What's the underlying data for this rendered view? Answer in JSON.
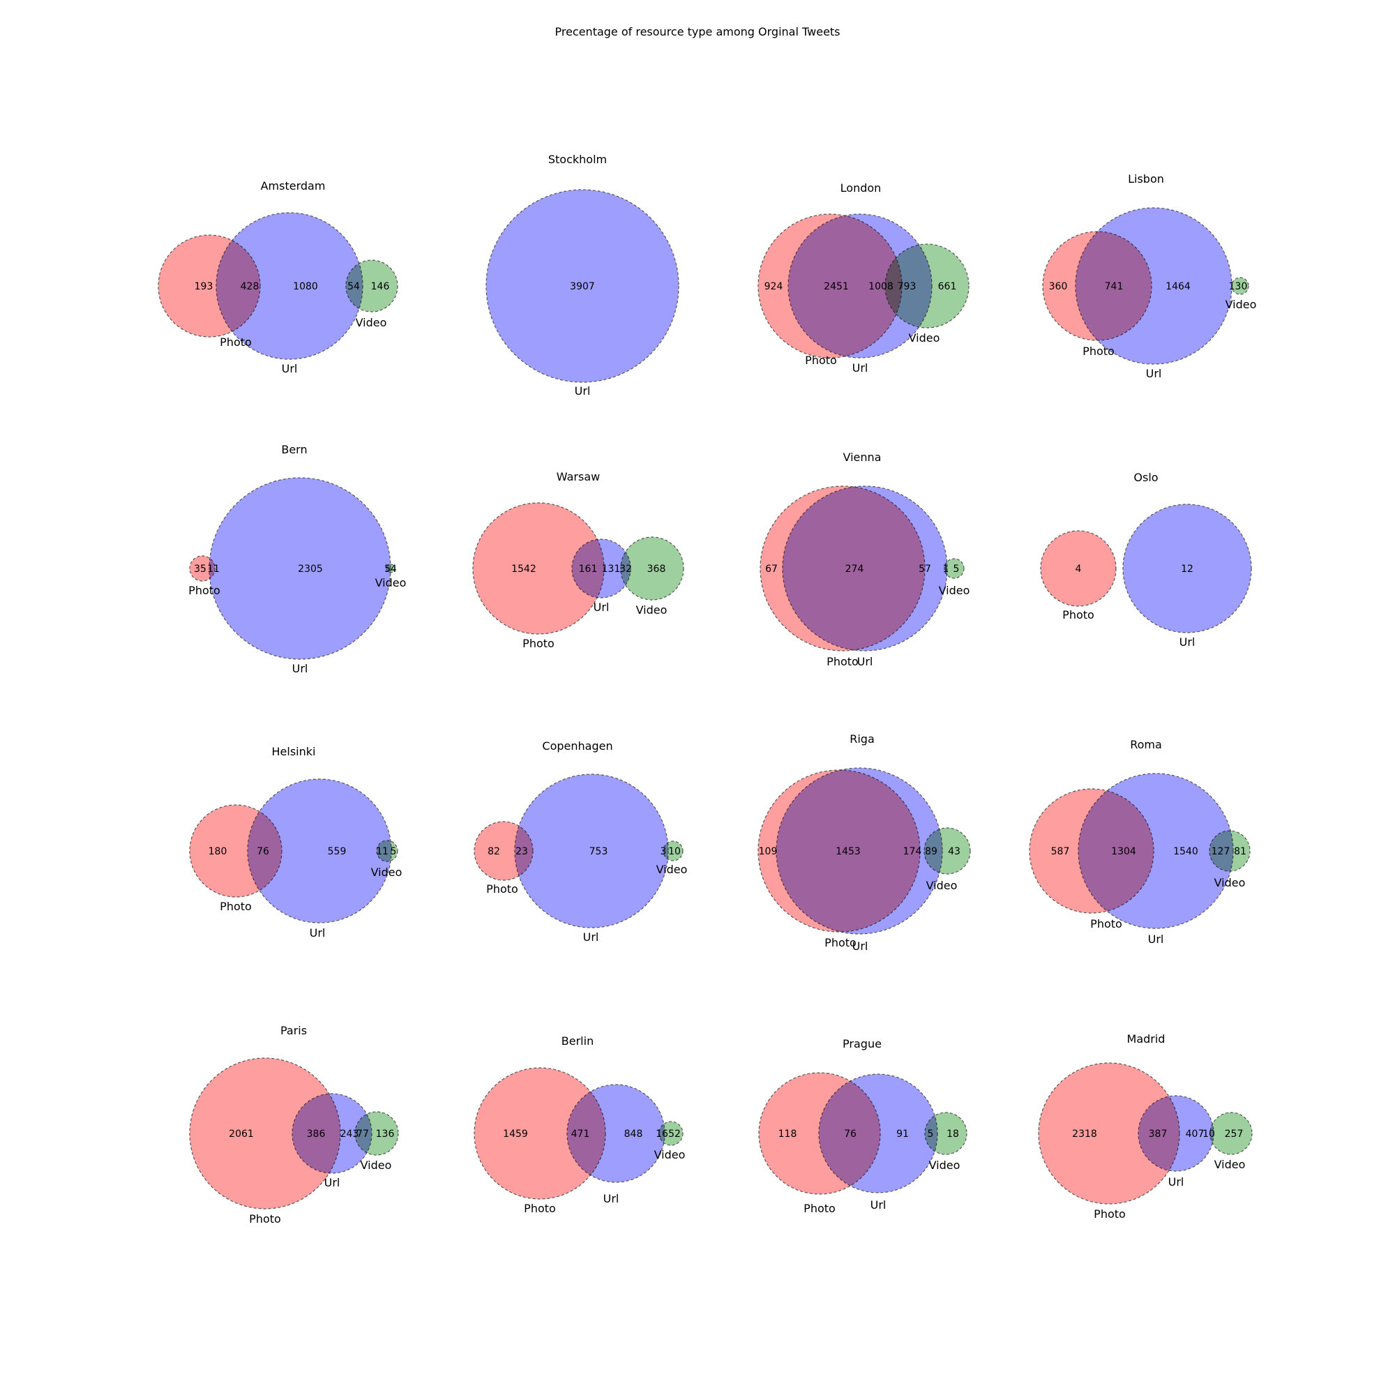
{
  "chart_data": {
    "type": "venn3",
    "title": "Precentage of resource type among Orginal Tweets",
    "sets": [
      "Photo",
      "Url",
      "Video"
    ],
    "colors": {
      "Photo": "#ff9999",
      "Url": "#9999ff",
      "Video": "#99cc99",
      "Photo_Url": "#de99de",
      "Url_Video": "#99b8de",
      "Photo_Video": "#ccb399"
    },
    "panels": [
      {
        "city": "Amsterdam",
        "regions": {
          "Photo": 193,
          "Url": 1080,
          "Video": 146,
          "Photo_Url": 428,
          "Url_Video": 54
        }
      },
      {
        "city": "Stockholm",
        "regions": {
          "Url": 3907
        }
      },
      {
        "city": "London",
        "regions": {
          "Photo": 924,
          "Url": 1008,
          "Video": 661,
          "Photo_Url": 2451,
          "Url_Video": 793
        }
      },
      {
        "city": "Lisbon",
        "regions": {
          "Photo": 360,
          "Url": 1464,
          "Video": 130,
          "Photo_Url": 741
        }
      },
      {
        "city": "Bern",
        "regions": {
          "Photo": 35,
          "Url": 2305,
          "Photo_Url": 11,
          "Url_Video": 54
        }
      },
      {
        "city": "Warsaw",
        "regions": {
          "Photo": 1542,
          "Url": 131,
          "Video": 368,
          "Photo_Url": 161,
          "Url_Video": 32
        }
      },
      {
        "city": "Vienna",
        "regions": {
          "Photo": 67,
          "Url": 57,
          "Video": 5,
          "Photo_Url": 274,
          "Url_Video": 1
        }
      },
      {
        "city": "Oslo",
        "regions": {
          "Photo": 4,
          "Url": 12
        }
      },
      {
        "city": "Helsinki",
        "regions": {
          "Photo": 180,
          "Url": 559,
          "Video": 5,
          "Photo_Url": 76,
          "Url_Video": 11
        }
      },
      {
        "city": "Copenhagen",
        "regions": {
          "Photo": 82,
          "Url": 753,
          "Video": 10,
          "Photo_Url": 23,
          "Url_Video": 3
        }
      },
      {
        "city": "Riga",
        "regions": {
          "Photo": 109,
          "Url": 174,
          "Video": 43,
          "Photo_Url": 1453,
          "Url_Video": 89
        }
      },
      {
        "city": "Roma",
        "regions": {
          "Photo": 587,
          "Url": 1540,
          "Video": 81,
          "Photo_Url": 1304,
          "Url_Video": 127
        }
      },
      {
        "city": "Paris",
        "regions": {
          "Photo": 2061,
          "Url": 243,
          "Video": 136,
          "Photo_Url": 386,
          "Url_Video": 77
        }
      },
      {
        "city": "Berlin",
        "regions": {
          "Photo": 1459,
          "Url": 848,
          "Video": 52,
          "Photo_Url": 471,
          "Url_Video": 16
        }
      },
      {
        "city": "Prague",
        "regions": {
          "Photo": 118,
          "Url": 91,
          "Video": 18,
          "Photo_Url": 76,
          "Url_Video": 5
        }
      },
      {
        "city": "Madrid",
        "regions": {
          "Photo": 2318,
          "Url": 407,
          "Video": 257,
          "Photo_Url": 387,
          "Url_Video": 10
        }
      }
    ]
  }
}
